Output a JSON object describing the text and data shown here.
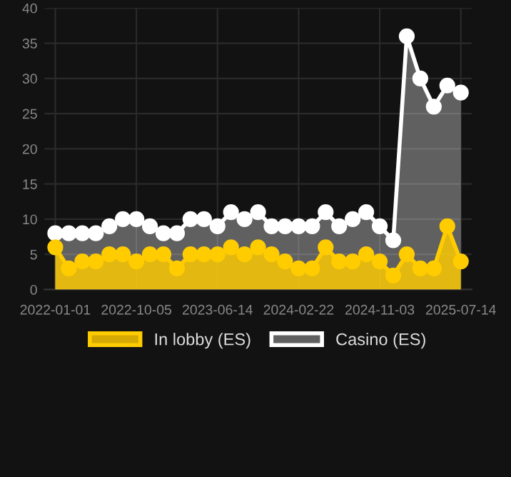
{
  "chart_data": {
    "type": "area",
    "categories": [
      "2022-01-01",
      null,
      null,
      null,
      null,
      null,
      "2022-10-05",
      null,
      null,
      null,
      null,
      null,
      "2023-06-14",
      null,
      null,
      null,
      null,
      null,
      "2024-02-22",
      null,
      null,
      null,
      null,
      null,
      "2024-11-03",
      null,
      null,
      null,
      null,
      null,
      "2025-07-14"
    ],
    "series": [
      {
        "name": "In lobby (ES)",
        "color": "#ffcc00",
        "values": [
          6,
          3,
          4,
          4,
          5,
          5,
          4,
          5,
          5,
          3,
          5,
          5,
          5,
          6,
          5,
          6,
          5,
          4,
          3,
          3,
          6,
          4,
          4,
          5,
          4,
          2,
          5,
          3,
          3,
          9,
          4
        ]
      },
      {
        "name": "Casino (ES)",
        "color": "#ffffff",
        "values": [
          8,
          8,
          8,
          8,
          9,
          10,
          10,
          9,
          8,
          8,
          10,
          10,
          9,
          11,
          10,
          11,
          9,
          9,
          9,
          9,
          11,
          9,
          10,
          11,
          9,
          7,
          36,
          30,
          26,
          29,
          28
        ]
      }
    ],
    "ylim": [
      0,
      40
    ],
    "yticks": [
      0,
      5,
      10,
      15,
      20,
      25,
      30,
      35,
      40
    ],
    "grid": true,
    "legend": "bottom",
    "marker": "circle",
    "line_style": "solid"
  }
}
